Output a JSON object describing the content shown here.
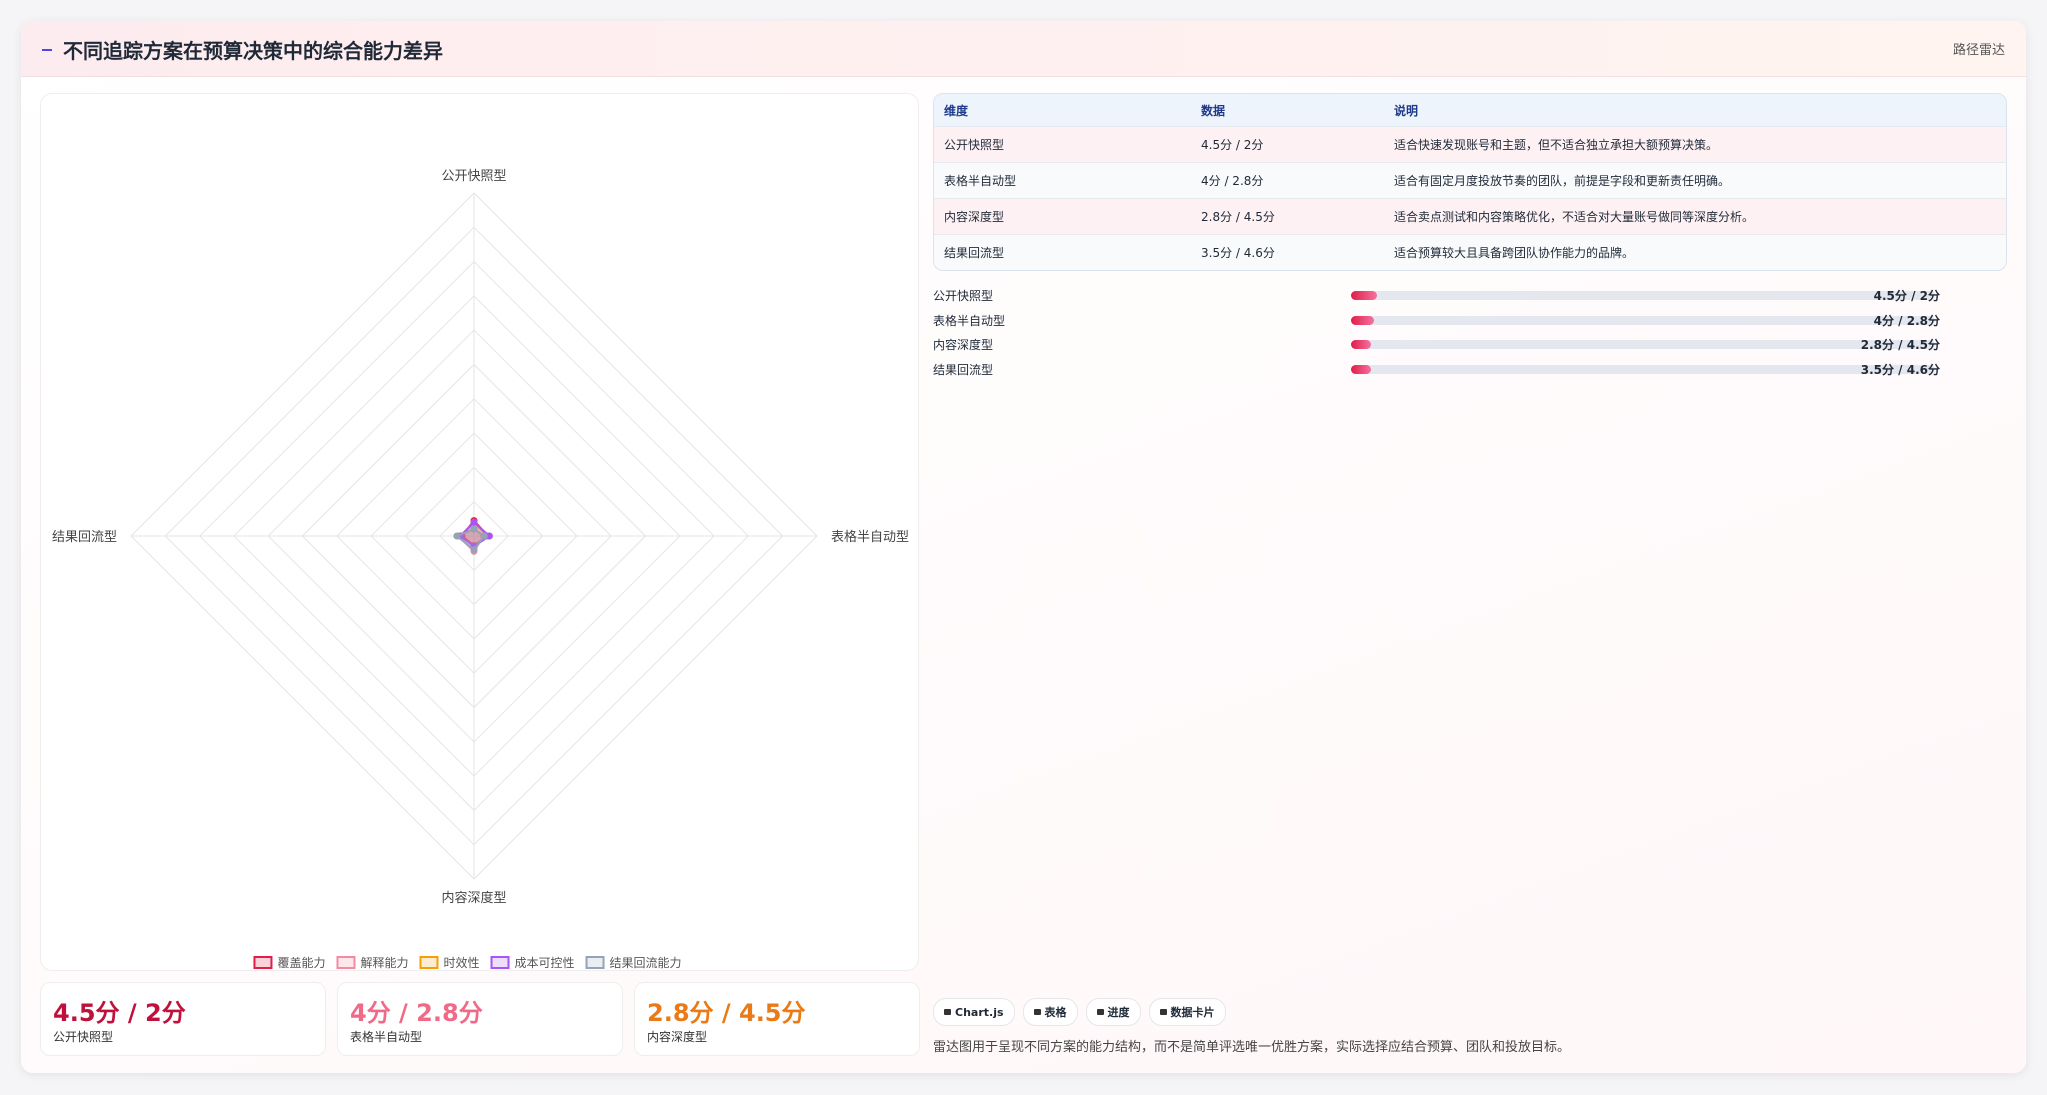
{
  "header": {
    "title": "不同追踪方案在预算决策中的综合能力差异",
    "tag": "路径雷达"
  },
  "chart_data": {
    "type": "radar",
    "categories": [
      "公开快照型",
      "表格半自动型",
      "内容深度型",
      "结果回流型"
    ],
    "series": [
      {
        "name": "覆盖能力",
        "color": "#e11d48",
        "values": [
          4.5,
          4,
          2.8,
          3.5
        ]
      },
      {
        "name": "解释能力",
        "color": "#f28ba0",
        "values": [
          2,
          2.8,
          4.5,
          4.6
        ]
      },
      {
        "name": "时效性",
        "color": "#f59e0b",
        "values": [
          4,
          4,
          3,
          4
        ]
      },
      {
        "name": "成本可控性",
        "color": "#a855f7",
        "values": [
          4,
          4.5,
          3,
          4
        ]
      },
      {
        "name": "结果回流能力",
        "color": "#94a3b8",
        "values": [
          2,
          3,
          4,
          5
        ]
      }
    ],
    "rlim": [
      0,
      100
    ],
    "rticks": [
      10,
      20,
      30,
      40,
      50,
      60,
      70,
      80,
      90,
      100
    ],
    "grid": true
  },
  "table": {
    "headers": [
      "维度",
      "数据",
      "说明"
    ],
    "rows": [
      [
        "公开快照型",
        "4.5分 / 2分",
        "适合快速发现账号和主题，但不适合独立承担大额预算决策。"
      ],
      [
        "表格半自动型",
        "4分 / 2.8分",
        "适合有固定月度投放节奏的团队，前提是字段和更新责任明确。"
      ],
      [
        "内容深度型",
        "2.8分 / 4.5分",
        "适合卖点测试和内容策略优化，不适合对大量账号做同等深度分析。"
      ],
      [
        "结果回流型",
        "3.5分 / 4.6分",
        "适合预算较大且具备跨团队协作能力的品牌。"
      ]
    ]
  },
  "bars": {
    "xlim": [
      0,
      100
    ],
    "items": [
      {
        "label": "公开快照型",
        "value": 4.5,
        "value_label": "4.5分 / 2分"
      },
      {
        "label": "表格半自动型",
        "value": 4,
        "value_label": "4分 / 2.8分"
      },
      {
        "label": "内容深度型",
        "value": 2.8,
        "value_label": "2.8分 / 4.5分"
      },
      {
        "label": "结果回流型",
        "value": 3.5,
        "value_label": "3.5分 / 4.6分"
      }
    ]
  },
  "cards": [
    {
      "value": "4.5分 / 2分",
      "label": "公开快照型",
      "color": "#be123c"
    },
    {
      "value": "4分 / 2.8分",
      "label": "表格半自动型",
      "color": "#f06a87"
    },
    {
      "value": "2.8分 / 4.5分",
      "label": "内容深度型",
      "color": "#ea7a18"
    }
  ],
  "chips": [
    "Chart.js",
    "表格",
    "进度",
    "数据卡片"
  ],
  "note": "雷达图用于呈现不同方案的能力结构，而不是简单评选唯一优胜方案，实际选择应结合预算、团队和投放目标。"
}
